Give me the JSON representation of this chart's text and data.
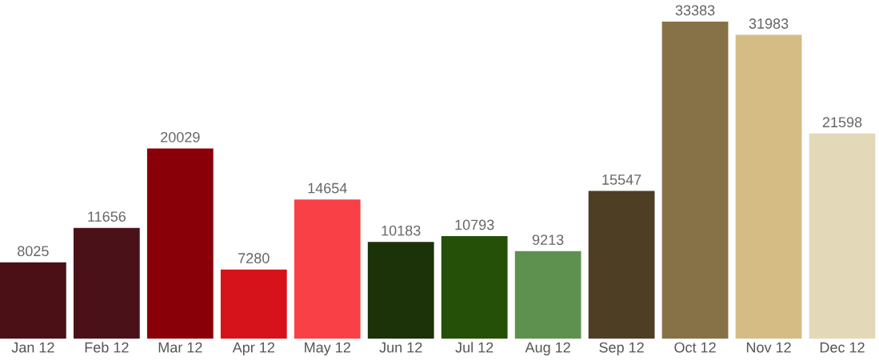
{
  "chart_data": {
    "type": "bar",
    "categories": [
      "Jan 12",
      "Feb 12",
      "Mar 12",
      "Apr 12",
      "May 12",
      "Jun 12",
      "Jul 12",
      "Aug 12",
      "Sep 12",
      "Oct 12",
      "Nov 12",
      "Dec 12"
    ],
    "values": [
      8025,
      11656,
      20029,
      7280,
      14654,
      10183,
      10793,
      9213,
      15547,
      33383,
      31983,
      21598
    ],
    "colors": [
      "#4a1016",
      "#4a1218",
      "#8a0008",
      "#d6121a",
      "#f84046",
      "#1c3208",
      "#245008",
      "#5e9150",
      "#4e3f24",
      "#877146",
      "#d4bc84",
      "#e3d8b8"
    ],
    "data_labels": true,
    "grid": false,
    "legend": false
  }
}
